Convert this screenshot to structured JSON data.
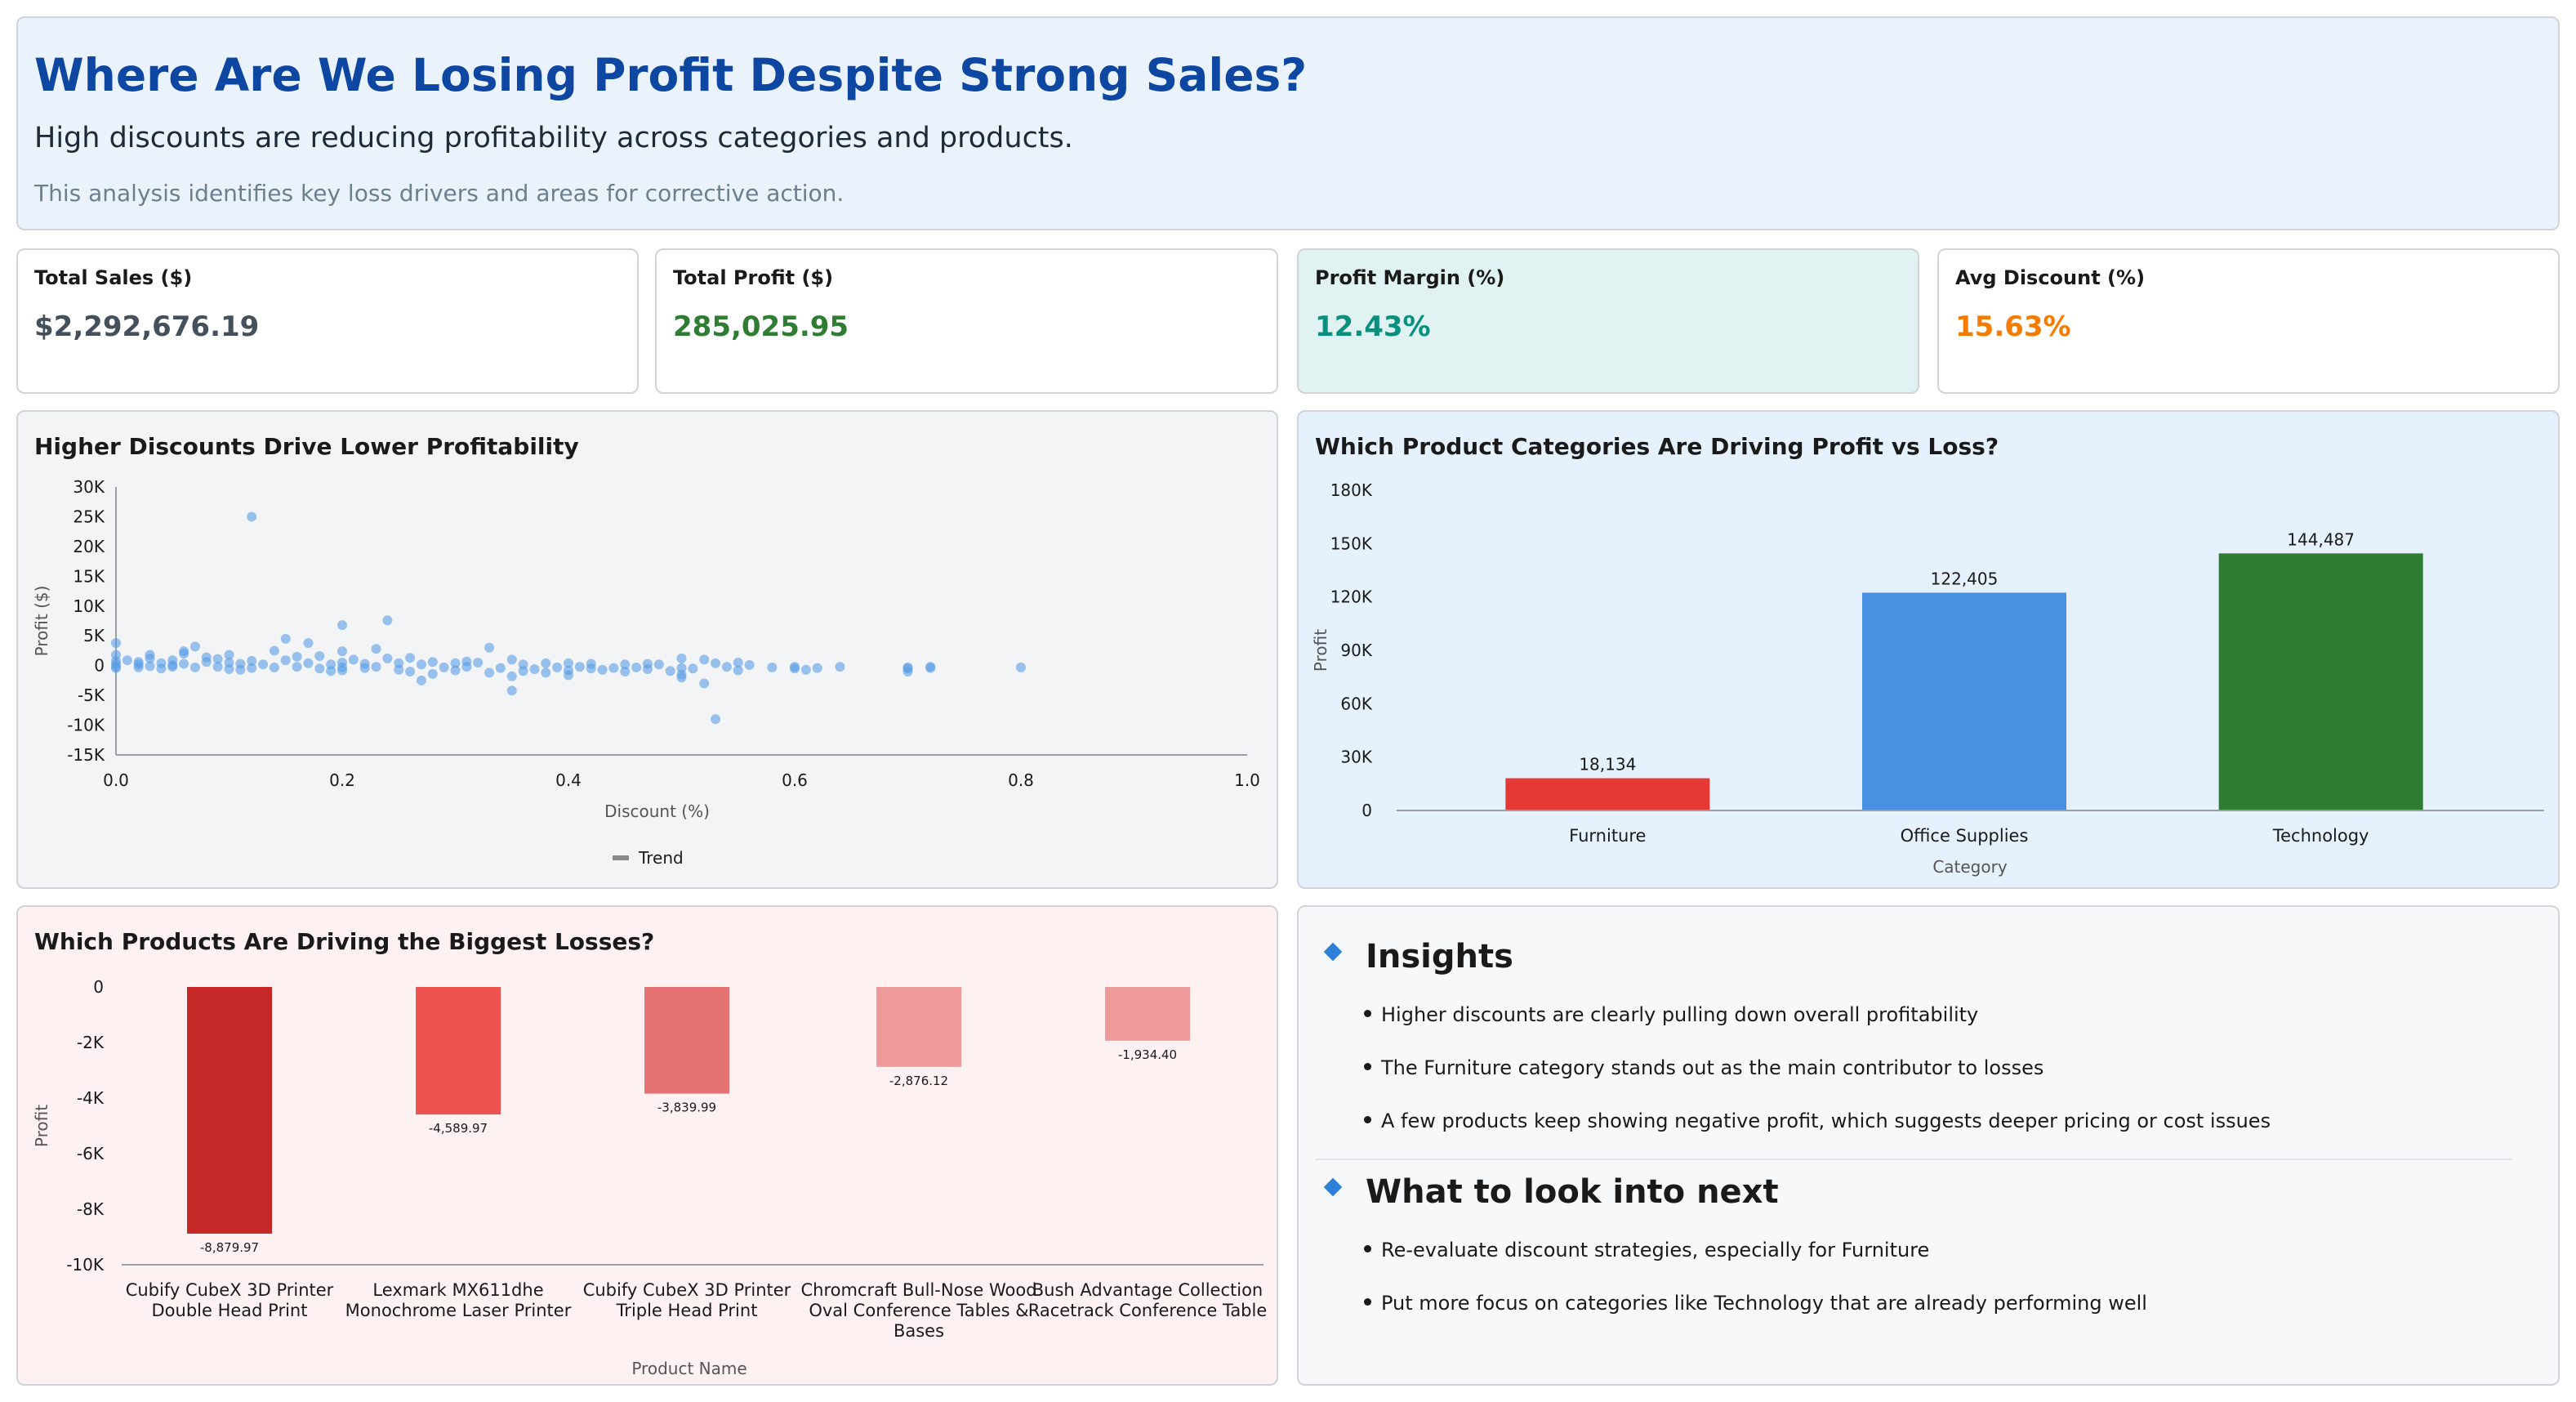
{
  "header": {
    "title": "Where Are We Losing Profit Despite Strong Sales?",
    "subtitle": "High discounts are reducing profitability across categories and products.",
    "note": "This analysis identifies key loss drivers and areas for corrective action."
  },
  "kpis": [
    {
      "label": "Total Sales ($)",
      "value": "$2,292,676.19",
      "color": "#44505c",
      "bg": "#ffffff"
    },
    {
      "label": "Total Profit ($)",
      "value": "285,025.95",
      "color": "#2e7d32",
      "bg": "#ffffff"
    },
    {
      "label": "Profit Margin (%)",
      "value": "12.43%",
      "color": "#0a8f7e",
      "bg": "#e0f2f1"
    },
    {
      "label": "Avg Discount (%)",
      "value": "15.63%",
      "color": "#f57c00",
      "bg": "#ffffff"
    }
  ],
  "chart_data": [
    {
      "type": "scatter",
      "title": "Higher Discounts Drive Lower Profitability",
      "xlabel": "Discount (%)",
      "ylabel": "Profit ($)",
      "xlim": [
        0.0,
        1.0
      ],
      "ylim": [
        -15000,
        30000
      ],
      "xticks": [
        0.0,
        0.2,
        0.4,
        0.6,
        0.8,
        1.0
      ],
      "xtick_labels": [
        "0.0",
        "0.2",
        "0.4",
        "0.6",
        "0.8",
        "1.0"
      ],
      "yticks": [
        -15000,
        -10000,
        -5000,
        0,
        5000,
        10000,
        15000,
        20000,
        25000,
        30000
      ],
      "ytick_labels": [
        "-15K",
        "-10K",
        "-5K",
        "0",
        "5K",
        "10K",
        "15K",
        "20K",
        "25K",
        "30K"
      ],
      "legend": [
        "Trend"
      ],
      "legend_position": "bottom",
      "color": "#5a9de6",
      "series": [
        {
          "points": [
            [
              0.0,
              300
            ],
            [
              0.0,
              1800
            ],
            [
              0.0,
              3800
            ],
            [
              0.0,
              -400
            ],
            [
              0.0,
              800
            ],
            [
              0.0,
              -200
            ],
            [
              0.02,
              200
            ],
            [
              0.02,
              600
            ],
            [
              0.02,
              -300
            ],
            [
              0.03,
              1200
            ],
            [
              0.03,
              -100
            ],
            [
              0.04,
              400
            ],
            [
              0.04,
              -500
            ],
            [
              0.05,
              900
            ],
            [
              0.05,
              100
            ],
            [
              0.05,
              -200
            ],
            [
              0.06,
              2000
            ],
            [
              0.06,
              300
            ],
            [
              0.07,
              3200
            ],
            [
              0.07,
              -300
            ],
            [
              0.08,
              600
            ],
            [
              0.08,
              1400
            ],
            [
              0.09,
              -200
            ],
            [
              0.1,
              500
            ],
            [
              0.1,
              1800
            ],
            [
              0.1,
              -600
            ],
            [
              0.11,
              300
            ],
            [
              0.12,
              25000
            ],
            [
              0.12,
              800
            ],
            [
              0.12,
              -400
            ],
            [
              0.13,
              200
            ],
            [
              0.14,
              2500
            ],
            [
              0.14,
              -300
            ],
            [
              0.15,
              4500
            ],
            [
              0.15,
              900
            ],
            [
              0.16,
              -200
            ],
            [
              0.17,
              3800
            ],
            [
              0.17,
              400
            ],
            [
              0.18,
              -500
            ],
            [
              0.18,
              1600
            ],
            [
              0.19,
              200
            ],
            [
              0.2,
              6800
            ],
            [
              0.2,
              2400
            ],
            [
              0.2,
              500
            ],
            [
              0.2,
              -800
            ],
            [
              0.2,
              -300
            ],
            [
              0.21,
              1000
            ],
            [
              0.22,
              -400
            ],
            [
              0.22,
              300
            ],
            [
              0.23,
              2800
            ],
            [
              0.23,
              -200
            ],
            [
              0.24,
              7600
            ],
            [
              0.24,
              1200
            ],
            [
              0.25,
              -700
            ],
            [
              0.25,
              400
            ],
            [
              0.26,
              -1000
            ],
            [
              0.27,
              -2500
            ],
            [
              0.27,
              200
            ],
            [
              0.28,
              -1400
            ],
            [
              0.28,
              600
            ],
            [
              0.29,
              -300
            ],
            [
              0.3,
              400
            ],
            [
              0.3,
              -800
            ],
            [
              0.31,
              -200
            ],
            [
              0.32,
              500
            ],
            [
              0.33,
              3000
            ],
            [
              0.33,
              -1200
            ],
            [
              0.34,
              -400
            ],
            [
              0.35,
              1000
            ],
            [
              0.35,
              -1800
            ],
            [
              0.36,
              200
            ],
            [
              0.37,
              -600
            ],
            [
              0.38,
              400
            ],
            [
              0.38,
              -1200
            ],
            [
              0.39,
              -300
            ],
            [
              0.4,
              400
            ],
            [
              0.4,
              -800
            ],
            [
              0.4,
              -1600
            ],
            [
              0.41,
              -200
            ],
            [
              0.42,
              300
            ],
            [
              0.43,
              -700
            ],
            [
              0.44,
              -400
            ],
            [
              0.45,
              200
            ],
            [
              0.45,
              -1000
            ],
            [
              0.46,
              -300
            ],
            [
              0.47,
              -600
            ],
            [
              0.48,
              200
            ],
            [
              0.49,
              -900
            ],
            [
              0.5,
              1200
            ],
            [
              0.5,
              -400
            ],
            [
              0.5,
              -1500
            ],
            [
              0.5,
              -2000
            ],
            [
              0.51,
              -500
            ],
            [
              0.52,
              1000
            ],
            [
              0.52,
              -3000
            ],
            [
              0.53,
              400
            ],
            [
              0.53,
              -9000
            ],
            [
              0.54,
              -200
            ],
            [
              0.55,
              -800
            ],
            [
              0.56,
              100
            ],
            [
              0.58,
              -300
            ],
            [
              0.6,
              -500
            ],
            [
              0.6,
              -200
            ],
            [
              0.62,
              -400
            ],
            [
              0.64,
              -200
            ],
            [
              0.7,
              -500
            ],
            [
              0.7,
              -1000
            ],
            [
              0.7,
              -300
            ],
            [
              0.72,
              -400
            ],
            [
              0.72,
              -200
            ],
            [
              0.8,
              -300
            ],
            [
              0.35,
              -4200
            ],
            [
              0.01,
              900
            ],
            [
              0.03,
              1800
            ],
            [
              0.06,
              2400
            ],
            [
              0.09,
              1100
            ],
            [
              0.11,
              -700
            ],
            [
              0.16,
              1500
            ],
            [
              0.19,
              -900
            ],
            [
              0.26,
              1300
            ],
            [
              0.31,
              700
            ],
            [
              0.36,
              -900
            ],
            [
              0.42,
              -500
            ],
            [
              0.47,
              300
            ],
            [
              0.55,
              500
            ],
            [
              0.61,
              -700
            ]
          ]
        }
      ]
    },
    {
      "type": "bar",
      "title": "Which Product Categories Are Driving Profit vs Loss?",
      "xlabel": "Category",
      "ylabel": "Profit",
      "categories": [
        "Furniture",
        "Office Supplies",
        "Technology"
      ],
      "values": [
        18134,
        122405,
        144487
      ],
      "value_labels": [
        "18,134",
        "122,405",
        "144,487"
      ],
      "colors": [
        "#e53935",
        "#4a90e2",
        "#2e7d32"
      ],
      "ylim": [
        0,
        180000
      ],
      "yticks": [
        0,
        30000,
        60000,
        90000,
        120000,
        150000,
        180000
      ],
      "ytick_labels": [
        "0",
        "30K",
        "60K",
        "90K",
        "120K",
        "150K",
        "180K"
      ]
    },
    {
      "type": "bar",
      "title": "Which Products Are Driving the Biggest Losses?",
      "xlabel": "Product Name",
      "ylabel": "Profit",
      "categories": [
        [
          "Cubify CubeX 3D Printer",
          "Double Head Print"
        ],
        [
          "Lexmark MX611dhe",
          "Monochrome Laser Printer"
        ],
        [
          "Cubify CubeX 3D Printer",
          "Triple Head Print"
        ],
        [
          "Chromcraft Bull-Nose Wood",
          "Oval Conference Tables &",
          "Bases"
        ],
        [
          "Bush Advantage Collection",
          "Racetrack Conference Table"
        ]
      ],
      "values": [
        -8879.97,
        -4589.97,
        -3839.99,
        -2876.12,
        -1934.4
      ],
      "value_labels": [
        "-8,879.97",
        "-4,589.97",
        "-3,839.99",
        "-2,876.12",
        "-1,934.40"
      ],
      "colors": [
        "#c62828",
        "#ef5350",
        "#e57373",
        "#ef9a9a",
        "#ef9a9a"
      ],
      "ylim": [
        -10000,
        0
      ],
      "yticks": [
        -10000,
        -8000,
        -6000,
        -4000,
        -2000,
        0
      ],
      "ytick_labels": [
        "-10K",
        "-8K",
        "-6K",
        "-4K",
        "-2K",
        "0"
      ]
    }
  ],
  "insights": {
    "heading": "Insights",
    "items": [
      "Higher discounts are clearly pulling down overall profitability",
      "The Furniture category stands out as the main contributor to losses",
      "A few products keep showing negative profit, which suggests deeper pricing or cost issues"
    ]
  },
  "next_steps": {
    "heading": "What to look into next",
    "items": [
      "Re-evaluate discount strategies, especially for Furniture",
      "Put more focus on categories like Technology that are already performing well"
    ]
  }
}
